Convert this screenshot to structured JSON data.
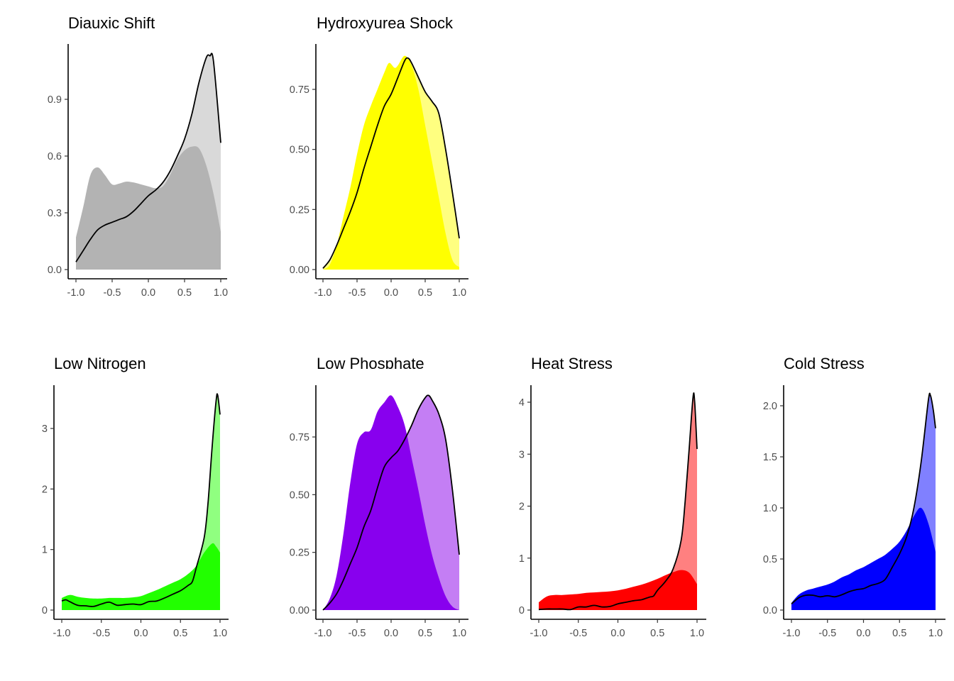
{
  "chart_data": [
    {
      "type": "area",
      "title": "Diauxic Shift",
      "xlim": [
        -1,
        1
      ],
      "xticks": [
        "-1.0",
        "-0.5",
        "0.0",
        "0.5",
        "1.0"
      ],
      "xtick_values": [
        -1,
        -0.5,
        0,
        0.5,
        1
      ],
      "yticks": [
        "0.0",
        "0.3",
        "0.6",
        "0.9"
      ],
      "ytick_values": [
        0,
        0.3,
        0.6,
        0.9
      ],
      "colors": {
        "dark": "#b3b3b3",
        "light": "#d9d9d9"
      },
      "series": [
        {
          "name": "density-filled",
          "x": [
            -1,
            -0.9,
            -0.8,
            -0.7,
            -0.6,
            -0.5,
            -0.4,
            -0.3,
            -0.2,
            -0.1,
            0,
            0.1,
            0.2,
            0.3,
            0.4,
            0.5,
            0.6,
            0.7,
            0.8,
            0.9,
            1.0
          ],
          "y": [
            0.17,
            0.33,
            0.5,
            0.54,
            0.5,
            0.45,
            0.455,
            0.465,
            0.46,
            0.45,
            0.44,
            0.43,
            0.44,
            0.5,
            0.58,
            0.63,
            0.65,
            0.64,
            0.55,
            0.4,
            0.2
          ]
        },
        {
          "name": "density-outlined",
          "x": [
            -1,
            -0.9,
            -0.8,
            -0.7,
            -0.6,
            -0.5,
            -0.4,
            -0.3,
            -0.2,
            -0.1,
            0,
            0.1,
            0.2,
            0.3,
            0.4,
            0.5,
            0.6,
            0.7,
            0.8,
            0.85,
            0.9,
            1.0
          ],
          "y": [
            0.04,
            0.1,
            0.16,
            0.21,
            0.235,
            0.25,
            0.265,
            0.28,
            0.31,
            0.35,
            0.39,
            0.42,
            0.46,
            0.52,
            0.6,
            0.69,
            0.82,
            0.99,
            1.12,
            1.13,
            1.1,
            0.67
          ]
        }
      ]
    },
    {
      "type": "area",
      "title": "Hydroxyurea Shock",
      "xlim": [
        -1,
        1
      ],
      "xticks": [
        "-1.0",
        "-0.5",
        "0.0",
        "0.5",
        "1.0"
      ],
      "xtick_values": [
        -1,
        -0.5,
        0,
        0.5,
        1
      ],
      "yticks": [
        "0.00",
        "0.25",
        "0.50",
        "0.75"
      ],
      "ytick_values": [
        0,
        0.25,
        0.5,
        0.75
      ],
      "colors": {
        "dark": "#ffff00",
        "light": "#ffff80"
      },
      "series": [
        {
          "name": "density-filled",
          "x": [
            -1,
            -0.9,
            -0.8,
            -0.7,
            -0.6,
            -0.5,
            -0.4,
            -0.3,
            -0.2,
            -0.1,
            -0.03,
            0.05,
            0.1,
            0.2,
            0.3,
            0.4,
            0.5,
            0.6,
            0.7,
            0.8,
            0.9,
            1.0
          ],
          "y": [
            0,
            0.02,
            0.1,
            0.22,
            0.34,
            0.48,
            0.6,
            0.68,
            0.75,
            0.82,
            0.86,
            0.84,
            0.85,
            0.89,
            0.85,
            0.75,
            0.6,
            0.45,
            0.3,
            0.15,
            0.04,
            0.01
          ]
        },
        {
          "name": "density-outlined",
          "x": [
            -1,
            -0.9,
            -0.8,
            -0.7,
            -0.6,
            -0.5,
            -0.4,
            -0.3,
            -0.2,
            -0.1,
            0,
            0.1,
            0.2,
            0.25,
            0.3,
            0.4,
            0.5,
            0.6,
            0.7,
            0.8,
            0.9,
            1.0
          ],
          "y": [
            0.005,
            0.04,
            0.1,
            0.17,
            0.24,
            0.32,
            0.42,
            0.51,
            0.6,
            0.68,
            0.73,
            0.8,
            0.87,
            0.88,
            0.86,
            0.8,
            0.74,
            0.7,
            0.65,
            0.5,
            0.32,
            0.13
          ]
        }
      ]
    },
    {
      "type": "area",
      "title": "Low Nitrogen",
      "xlim": [
        -1,
        1
      ],
      "xticks": [
        "-1.0",
        "-0.5",
        "0.0",
        "0.5",
        "1.0"
      ],
      "xtick_values": [
        -1,
        -0.5,
        0,
        0.5,
        1
      ],
      "yticks": [
        "0",
        "1",
        "2",
        "3"
      ],
      "ytick_values": [
        0,
        1,
        2,
        3
      ],
      "colors": {
        "dark": "#22ff00",
        "light": "#90ff80"
      },
      "series": [
        {
          "name": "density-filled",
          "x": [
            -1,
            -0.9,
            -0.8,
            -0.7,
            -0.6,
            -0.5,
            -0.4,
            -0.3,
            -0.2,
            -0.1,
            0,
            0.1,
            0.2,
            0.3,
            0.4,
            0.5,
            0.6,
            0.7,
            0.8,
            0.9,
            0.95,
            1.0
          ],
          "y": [
            0.2,
            0.25,
            0.22,
            0.2,
            0.19,
            0.19,
            0.2,
            0.2,
            0.2,
            0.21,
            0.23,
            0.28,
            0.33,
            0.39,
            0.45,
            0.51,
            0.6,
            0.73,
            0.95,
            1.1,
            1.05,
            0.95
          ]
        },
        {
          "name": "density-outlined",
          "x": [
            -1,
            -0.95,
            -0.9,
            -0.8,
            -0.7,
            -0.6,
            -0.5,
            -0.4,
            -0.3,
            -0.2,
            -0.1,
            0,
            0.1,
            0.2,
            0.3,
            0.4,
            0.5,
            0.6,
            0.65,
            0.7,
            0.8,
            0.85,
            0.9,
            0.95,
            0.97,
            1.0
          ],
          "y": [
            0.15,
            0.17,
            0.14,
            0.08,
            0.07,
            0.06,
            0.1,
            0.13,
            0.08,
            0.09,
            0.1,
            0.09,
            0.14,
            0.15,
            0.2,
            0.26,
            0.32,
            0.41,
            0.47,
            0.7,
            1.2,
            1.8,
            2.7,
            3.45,
            3.55,
            3.23
          ]
        }
      ]
    },
    {
      "type": "area",
      "title": "Low Phosphate",
      "xlim": [
        -1,
        1
      ],
      "xticks": [
        "-1.0",
        "-0.5",
        "0.0",
        "0.5",
        "1.0"
      ],
      "xtick_values": [
        -1,
        -0.5,
        0,
        0.5,
        1
      ],
      "yticks": [
        "0.00",
        "0.25",
        "0.50",
        "0.75"
      ],
      "ytick_values": [
        0,
        0.25,
        0.5,
        0.75
      ],
      "colors": {
        "dark": "#8800ee",
        "light": "#c47ef4"
      },
      "series": [
        {
          "name": "density-filled",
          "x": [
            -1,
            -0.9,
            -0.8,
            -0.7,
            -0.6,
            -0.5,
            -0.4,
            -0.3,
            -0.2,
            -0.1,
            0,
            0.1,
            0.2,
            0.3,
            0.4,
            0.5,
            0.6,
            0.7,
            0.8,
            0.9,
            1.0
          ],
          "y": [
            0,
            0.05,
            0.15,
            0.33,
            0.55,
            0.72,
            0.77,
            0.78,
            0.86,
            0.9,
            0.93,
            0.88,
            0.8,
            0.66,
            0.52,
            0.37,
            0.24,
            0.14,
            0.06,
            0.015,
            0
          ]
        },
        {
          "name": "density-outlined",
          "x": [
            -1,
            -0.9,
            -0.8,
            -0.7,
            -0.6,
            -0.5,
            -0.4,
            -0.3,
            -0.2,
            -0.1,
            0,
            0.1,
            0.2,
            0.3,
            0.4,
            0.5,
            0.55,
            0.6,
            0.7,
            0.8,
            0.9,
            1.0
          ],
          "y": [
            0,
            0.03,
            0.07,
            0.13,
            0.2,
            0.27,
            0.36,
            0.43,
            0.53,
            0.62,
            0.66,
            0.69,
            0.74,
            0.8,
            0.87,
            0.92,
            0.93,
            0.91,
            0.85,
            0.74,
            0.52,
            0.24
          ]
        }
      ]
    },
    {
      "type": "area",
      "title": "Heat Stress",
      "xlim": [
        -1,
        1
      ],
      "xticks": [
        "-1.0",
        "-0.5",
        "0.0",
        "0.5",
        "1.0"
      ],
      "xtick_values": [
        -1,
        -0.5,
        0,
        0.5,
        1
      ],
      "yticks": [
        "0",
        "1",
        "2",
        "3",
        "4"
      ],
      "ytick_values": [
        0,
        1,
        2,
        3,
        4
      ],
      "colors": {
        "dark": "#ff0000",
        "light": "#ff8080"
      },
      "series": [
        {
          "name": "density-filled",
          "x": [
            -1,
            -0.9,
            -0.8,
            -0.7,
            -0.6,
            -0.5,
            -0.4,
            -0.3,
            -0.2,
            -0.1,
            0,
            0.1,
            0.2,
            0.3,
            0.4,
            0.5,
            0.6,
            0.7,
            0.8,
            0.9,
            1.0
          ],
          "y": [
            0.15,
            0.26,
            0.29,
            0.29,
            0.3,
            0.31,
            0.33,
            0.34,
            0.35,
            0.36,
            0.38,
            0.41,
            0.45,
            0.49,
            0.54,
            0.6,
            0.67,
            0.73,
            0.77,
            0.72,
            0.5
          ]
        },
        {
          "name": "density-outlined",
          "x": [
            -1,
            -0.9,
            -0.8,
            -0.7,
            -0.6,
            -0.5,
            -0.4,
            -0.3,
            -0.2,
            -0.1,
            0,
            0.1,
            0.2,
            0.3,
            0.4,
            0.45,
            0.5,
            0.6,
            0.7,
            0.8,
            0.85,
            0.9,
            0.95,
            0.97,
            1.0
          ],
          "y": [
            0.01,
            0.02,
            0.02,
            0.02,
            0.01,
            0.06,
            0.06,
            0.09,
            0.06,
            0.07,
            0.12,
            0.15,
            0.18,
            0.2,
            0.25,
            0.27,
            0.38,
            0.55,
            0.8,
            1.35,
            2.1,
            3.1,
            4.1,
            4.0,
            3.1
          ]
        }
      ]
    },
    {
      "type": "area",
      "title": "Cold Stress",
      "xlim": [
        -1,
        1
      ],
      "xticks": [
        "-1.0",
        "-0.5",
        "0.0",
        "0.5",
        "1.0"
      ],
      "xtick_values": [
        -1,
        -0.5,
        0,
        0.5,
        1
      ],
      "yticks": [
        "0.0",
        "0.5",
        "1.0",
        "1.5",
        "2.0"
      ],
      "ytick_values": [
        0,
        0.5,
        1,
        1.5,
        2
      ],
      "colors": {
        "dark": "#0000ff",
        "light": "#8080ff"
      },
      "series": [
        {
          "name": "density-filled",
          "x": [
            -1,
            -0.9,
            -0.8,
            -0.7,
            -0.6,
            -0.5,
            -0.4,
            -0.3,
            -0.2,
            -0.1,
            0,
            0.1,
            0.2,
            0.3,
            0.4,
            0.5,
            0.6,
            0.7,
            0.8,
            0.9,
            1.0
          ],
          "y": [
            0.07,
            0.15,
            0.19,
            0.21,
            0.23,
            0.25,
            0.28,
            0.32,
            0.35,
            0.39,
            0.42,
            0.46,
            0.5,
            0.54,
            0.6,
            0.67,
            0.78,
            0.92,
            1.0,
            0.85,
            0.57
          ]
        },
        {
          "name": "density-outlined",
          "x": [
            -1,
            -0.9,
            -0.8,
            -0.7,
            -0.6,
            -0.5,
            -0.4,
            -0.3,
            -0.2,
            -0.1,
            0,
            0.1,
            0.2,
            0.3,
            0.4,
            0.5,
            0.6,
            0.7,
            0.8,
            0.9,
            0.93,
            0.97,
            1.0
          ],
          "y": [
            0.06,
            0.12,
            0.145,
            0.145,
            0.13,
            0.14,
            0.13,
            0.15,
            0.18,
            0.2,
            0.21,
            0.24,
            0.26,
            0.3,
            0.42,
            0.55,
            0.72,
            1.0,
            1.45,
            2.05,
            2.1,
            1.95,
            1.78
          ]
        }
      ]
    }
  ]
}
